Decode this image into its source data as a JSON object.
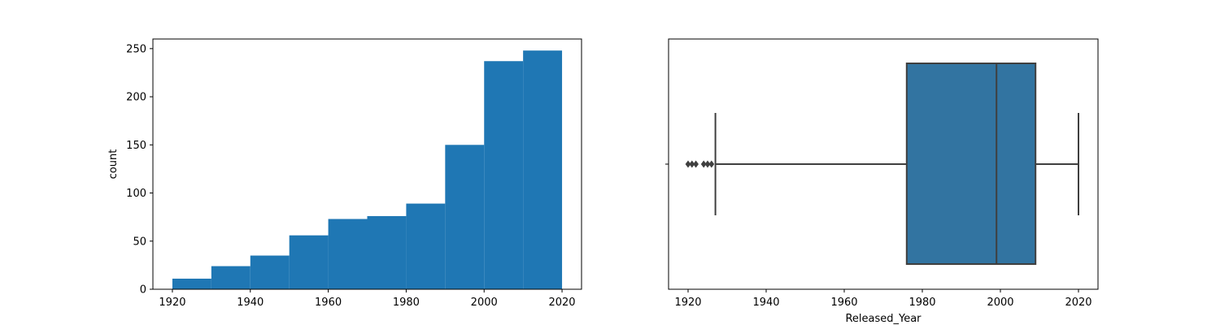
{
  "chart_data": [
    {
      "type": "bar",
      "variant": "histogram",
      "xlabel": "",
      "ylabel": "count",
      "bins": [
        {
          "start": 1920,
          "end": 1930,
          "count": 11
        },
        {
          "start": 1930,
          "end": 1940,
          "count": 24
        },
        {
          "start": 1940,
          "end": 1950,
          "count": 35
        },
        {
          "start": 1950,
          "end": 1960,
          "count": 56
        },
        {
          "start": 1960,
          "end": 1970,
          "count": 73
        },
        {
          "start": 1970,
          "end": 1980,
          "count": 76
        },
        {
          "start": 1980,
          "end": 1990,
          "count": 89
        },
        {
          "start": 1990,
          "end": 2000,
          "count": 150
        },
        {
          "start": 2000,
          "end": 2010,
          "count": 237
        },
        {
          "start": 2010,
          "end": 2020,
          "count": 248
        }
      ],
      "xlim": [
        1915,
        2025
      ],
      "ylim": [
        0,
        260
      ],
      "xticks": [
        1920,
        1940,
        1960,
        1980,
        2000,
        2020
      ],
      "yticks": [
        0,
        50,
        100,
        150,
        200,
        250
      ],
      "bar_color": "#1f77b4",
      "grid": false
    },
    {
      "type": "box",
      "xlabel": "Released_Year",
      "ylabel": "",
      "whisker_low": 1927,
      "q1": 1976,
      "median": 1999,
      "q3": 2009,
      "whisker_high": 2020,
      "outliers": [
        1920,
        1921,
        1922,
        1924,
        1925,
        1926
      ],
      "xlim": [
        1915,
        2025
      ],
      "xticks": [
        1920,
        1940,
        1960,
        1980,
        2000,
        2020
      ],
      "box_color": "#3274a1",
      "line_color": "#3f3f3f",
      "grid": false
    }
  ]
}
